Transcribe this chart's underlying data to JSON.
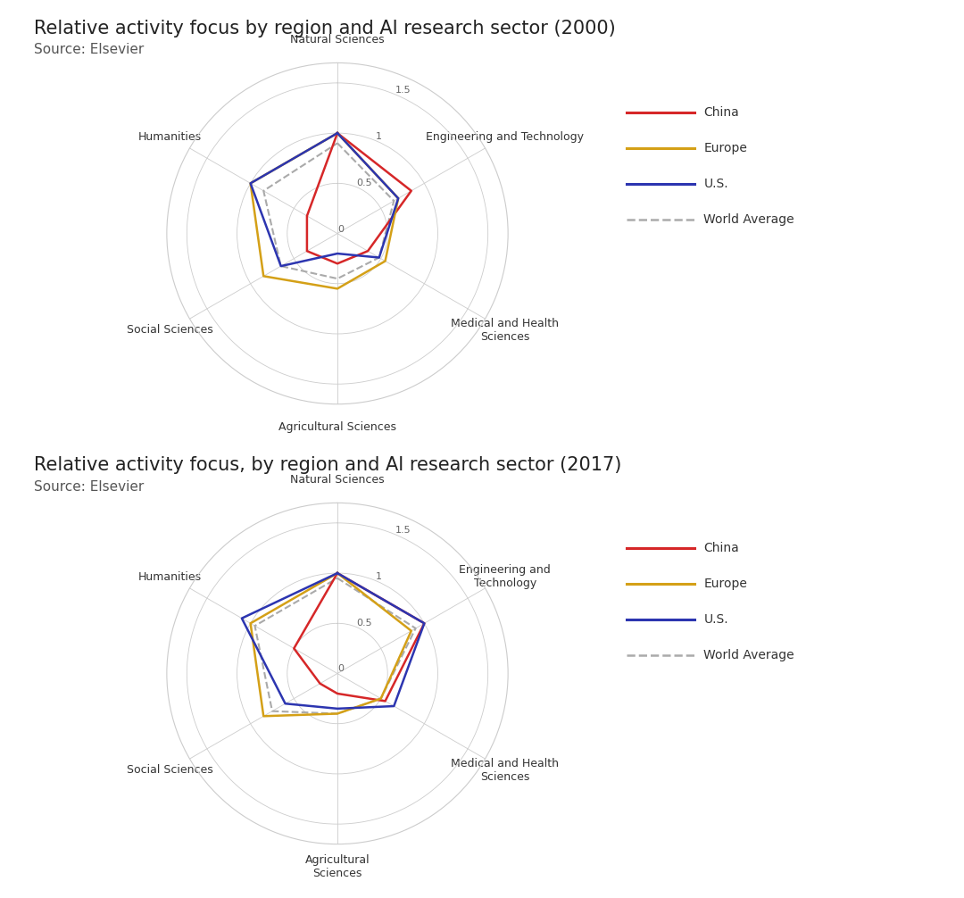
{
  "chart1": {
    "title": "Relative activity focus by region and AI research sector (2000)",
    "source": "Source: Elsevier",
    "categories": [
      "Natural Sciences",
      "Engineering and Technology",
      "Medical and Health\nSciences",
      "Agricultural Sciences",
      "Social Sciences",
      "Humanities"
    ],
    "china": [
      1.0,
      0.85,
      0.35,
      0.3,
      0.35,
      0.35
    ],
    "europe": [
      1.0,
      0.7,
      0.55,
      0.55,
      0.85,
      1.0
    ],
    "us": [
      1.0,
      0.7,
      0.48,
      0.2,
      0.65,
      1.0
    ],
    "world": [
      0.9,
      0.65,
      0.48,
      0.45,
      0.65,
      0.85
    ]
  },
  "chart2": {
    "title": "Relative activity focus, by region and AI research sector (2017)",
    "source": "Source: Elsevier",
    "categories": [
      "Natural Sciences",
      "Engineering and\nTechnology",
      "Medical and Health\nSciences",
      "Agricultural\nSciences",
      "Social Sciences",
      "Humanities"
    ],
    "china": [
      1.0,
      1.0,
      0.55,
      0.2,
      0.2,
      0.5
    ],
    "europe": [
      1.0,
      0.85,
      0.5,
      0.4,
      0.85,
      1.0
    ],
    "us": [
      1.0,
      1.0,
      0.65,
      0.35,
      0.6,
      1.1
    ],
    "world": [
      0.95,
      0.9,
      0.5,
      0.4,
      0.75,
      0.95
    ]
  },
  "colors": {
    "china": "#d62728",
    "europe": "#d4a017",
    "us": "#2c35b0",
    "world": "#aaaaaa"
  },
  "legend_labels": [
    "China",
    "Europe",
    "U.S.",
    "World Average"
  ],
  "rtick_vals": [
    0,
    0.5,
    1.0,
    1.5
  ],
  "rtick_labels": [
    "0",
    "0.5",
    "1",
    "1.5"
  ],
  "rmax": 1.7,
  "title_fontsize": 15,
  "source_fontsize": 11,
  "label_fontsize": 9,
  "tick_fontsize": 8,
  "legend_fontsize": 10
}
